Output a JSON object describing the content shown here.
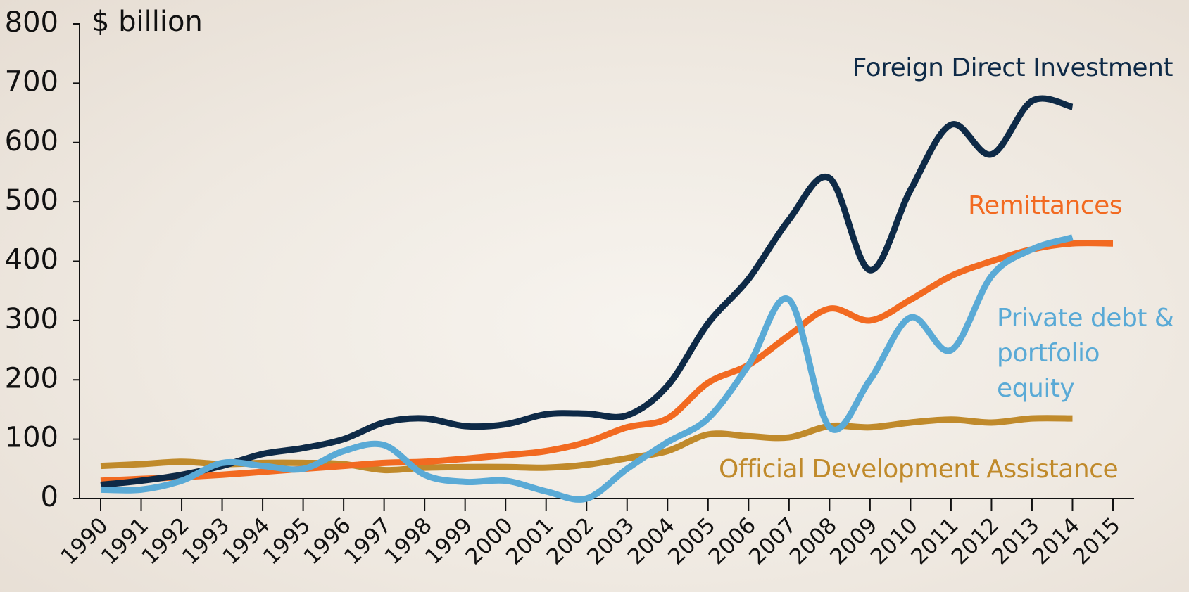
{
  "chart_data": {
    "type": "line",
    "y_label": "$ billion",
    "x": [
      1990,
      1991,
      1992,
      1993,
      1994,
      1995,
      1996,
      1997,
      1998,
      1999,
      2000,
      2001,
      2002,
      2003,
      2004,
      2005,
      2006,
      2007,
      2008,
      2009,
      2010,
      2011,
      2012,
      2013,
      2014,
      2015
    ],
    "xlim": [
      1990,
      2015
    ],
    "xticks": [
      1990,
      1991,
      1992,
      1993,
      1994,
      1995,
      1996,
      1997,
      1998,
      1999,
      2000,
      2001,
      2002,
      2003,
      2004,
      2005,
      2006,
      2007,
      2008,
      2009,
      2010,
      2011,
      2012,
      2013,
      2014,
      2015
    ],
    "ylim": [
      0,
      800
    ],
    "yticks": [
      0,
      100,
      200,
      300,
      400,
      500,
      600,
      700,
      800
    ],
    "grid": false,
    "series": [
      {
        "name": "Foreign Direct Investment",
        "color": "#0e2a47",
        "values": [
          23,
          30,
          40,
          55,
          75,
          85,
          100,
          128,
          135,
          122,
          125,
          142,
          143,
          140,
          190,
          295,
          370,
          470,
          540,
          385,
          520,
          630,
          580,
          670,
          660,
          null
        ]
      },
      {
        "name": "Remittances",
        "color": "#f26a21",
        "values": [
          30,
          33,
          36,
          40,
          45,
          50,
          55,
          60,
          62,
          67,
          73,
          80,
          95,
          120,
          135,
          195,
          225,
          275,
          320,
          300,
          335,
          375,
          400,
          420,
          430,
          430
        ]
      },
      {
        "name": "Private debt & portfolio equity",
        "color": "#5aaad6",
        "values": [
          15,
          15,
          30,
          60,
          55,
          50,
          80,
          90,
          40,
          28,
          30,
          12,
          0,
          50,
          95,
          135,
          225,
          335,
          120,
          200,
          305,
          250,
          375,
          420,
          440,
          null
        ]
      },
      {
        "name": "Official Development Assistance",
        "color": "#c08a2b",
        "values": [
          55,
          58,
          62,
          58,
          60,
          60,
          58,
          48,
          52,
          53,
          53,
          52,
          57,
          68,
          80,
          108,
          105,
          103,
          122,
          120,
          128,
          133,
          128,
          135,
          135,
          null
        ]
      }
    ]
  }
}
